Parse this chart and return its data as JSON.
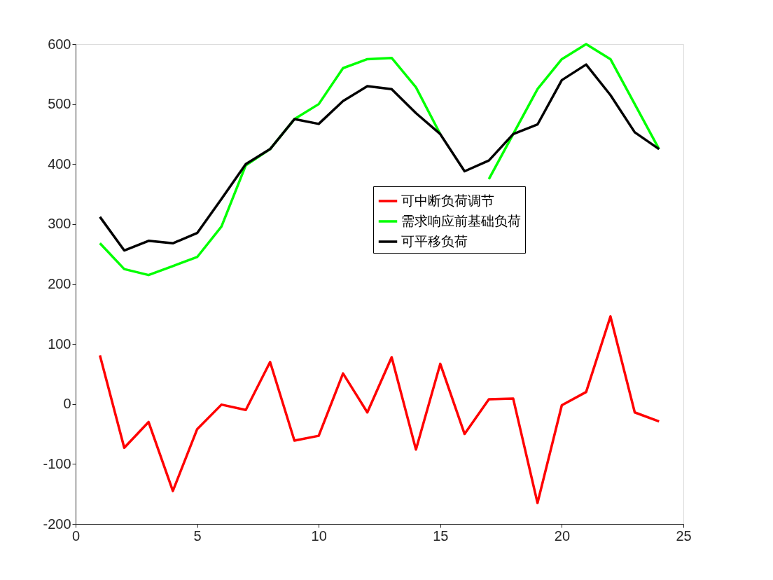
{
  "chart_data": {
    "type": "line",
    "x": [
      1,
      2,
      3,
      4,
      5,
      6,
      7,
      8,
      9,
      10,
      11,
      12,
      13,
      14,
      15,
      16,
      17,
      18,
      19,
      20,
      21,
      22,
      23,
      24
    ],
    "xlim": [
      0,
      25
    ],
    "xticks": [
      0,
      5,
      10,
      15,
      20,
      25
    ],
    "ylim": [
      -200,
      600
    ],
    "yticks": [
      -200,
      -100,
      0,
      100,
      200,
      300,
      400,
      500,
      600
    ],
    "grid": false,
    "legend": "right",
    "marker": "none",
    "line_style": "solid",
    "series": [
      {
        "name": "可中断负荷调节",
        "color": "#ff0000",
        "values": [
          81,
          -73,
          -30,
          -145,
          -42,
          -1,
          -10,
          70,
          -61,
          -53,
          51,
          -14,
          78,
          -76,
          67,
          -50,
          8,
          9,
          -165,
          -2,
          20,
          146,
          -14,
          -29
        ]
      },
      {
        "name": "需求响应前基础负荷",
        "color": "#00ff00",
        "values": [
          268,
          225,
          215,
          230,
          245,
          296,
          398,
          425,
          475,
          500,
          560,
          575,
          577,
          528,
          450,
          null,
          375,
          450,
          525,
          575,
          600,
          575,
          500,
          425
        ]
      },
      {
        "name": "可平移负荷",
        "color": "#000000",
        "values": [
          312,
          256,
          272,
          268,
          285,
          342,
          400,
          425,
          475,
          467,
          505,
          530,
          525,
          485,
          450,
          388,
          406,
          450,
          466,
          540,
          566,
          515,
          453,
          425
        ]
      }
    ]
  }
}
